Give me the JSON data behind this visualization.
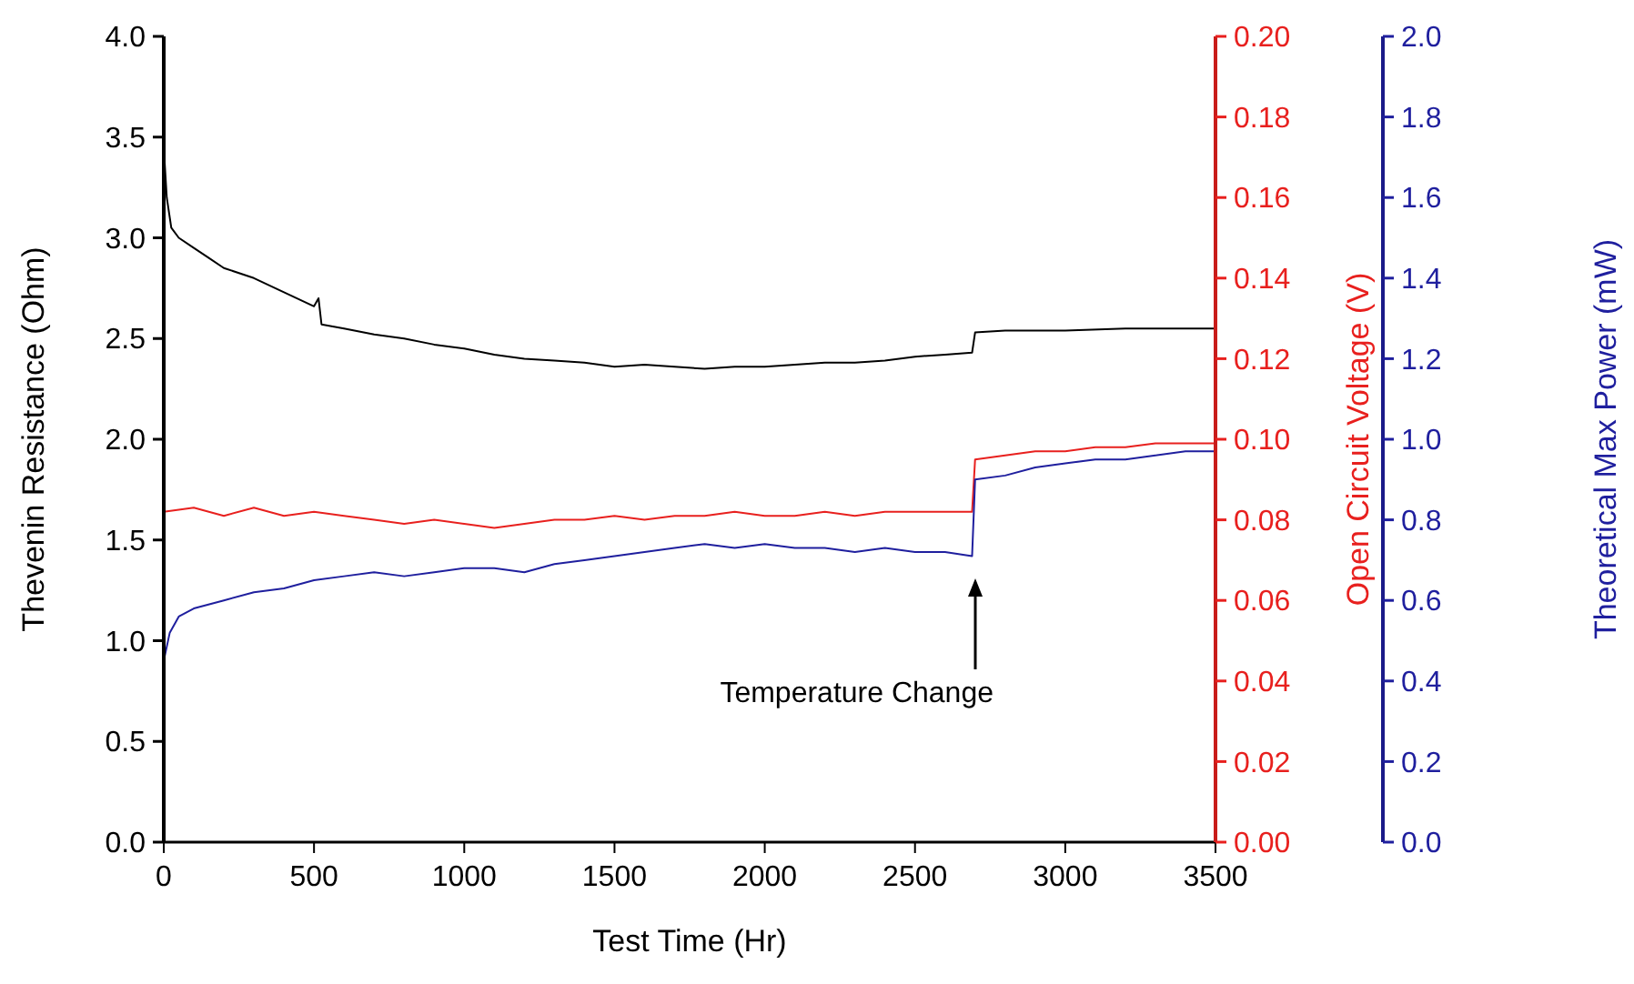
{
  "chart_data": {
    "type": "line",
    "xlabel": "Test Time (Hr)",
    "ylabel": "Thevenin Resistance (Ohm)",
    "y2label": "Open Circuit Voltage (V)",
    "y3label": "Theoretical Max Power (mW)",
    "xlim": [
      0,
      3500
    ],
    "xticks": [
      0,
      500,
      1000,
      1500,
      2000,
      2500,
      3000,
      3500
    ],
    "ylim": [
      0,
      4
    ],
    "yticks": [
      {
        "value": 0,
        "label": "0.0"
      },
      0.5,
      {
        "value": 1,
        "label": "1.0"
      },
      1.5,
      {
        "value": 2,
        "label": "2.0"
      },
      2.5,
      {
        "value": 3,
        "label": "3.0"
      },
      3.5,
      {
        "value": 4,
        "label": "4.0"
      }
    ],
    "y2lim": [
      0,
      0.2
    ],
    "y2ticks": [
      {
        "value": 0,
        "label": "0.00"
      },
      0.02,
      0.04,
      0.06,
      0.08,
      {
        "value": 0.1,
        "label": "0.10"
      },
      0.12,
      0.14,
      0.16,
      0.18,
      {
        "value": 0.2,
        "label": "0.20"
      }
    ],
    "y3lim": [
      0,
      2
    ],
    "y3ticks": [
      {
        "value": 0,
        "label": "0.0"
      },
      0.2,
      0.4,
      0.6,
      0.8,
      {
        "value": 1,
        "label": "1.0"
      },
      1.2,
      1.4,
      1.6,
      1.8,
      {
        "value": 2,
        "label": "2.0"
      }
    ],
    "annotations": [
      "Temperature Change"
    ],
    "series": [
      {
        "color": "#000000",
        "axis": "y",
        "x": [
          0,
          10,
          25,
          50,
          100,
          150,
          200,
          300,
          400,
          500,
          515,
          525,
          600,
          700,
          800,
          900,
          1000,
          1100,
          1200,
          1300,
          1400,
          1500,
          1600,
          1700,
          1800,
          1900,
          2000,
          2100,
          2200,
          2300,
          2400,
          2500,
          2600,
          2690,
          2700,
          2800,
          3000,
          3200,
          3500
        ],
        "values": [
          3.45,
          3.2,
          3.05,
          3.0,
          2.95,
          2.9,
          2.85,
          2.8,
          2.73,
          2.66,
          2.7,
          2.57,
          2.55,
          2.52,
          2.5,
          2.47,
          2.45,
          2.42,
          2.4,
          2.39,
          2.38,
          2.36,
          2.37,
          2.36,
          2.35,
          2.36,
          2.36,
          2.37,
          2.38,
          2.38,
          2.39,
          2.41,
          2.42,
          2.43,
          2.53,
          2.54,
          2.54,
          2.55,
          2.55
        ]
      },
      {
        "color": "#e8201e",
        "axis": "y2",
        "x": [
          0,
          100,
          200,
          300,
          400,
          500,
          600,
          700,
          800,
          900,
          1000,
          1100,
          1200,
          1300,
          1400,
          1500,
          1600,
          1700,
          1800,
          1900,
          2000,
          2100,
          2200,
          2300,
          2400,
          2500,
          2600,
          2690,
          2700,
          2800,
          2900,
          3000,
          3100,
          3200,
          3300,
          3400,
          3500
        ],
        "values": [
          0.082,
          0.083,
          0.081,
          0.083,
          0.081,
          0.082,
          0.081,
          0.08,
          0.079,
          0.08,
          0.079,
          0.078,
          0.079,
          0.08,
          0.08,
          0.081,
          0.08,
          0.081,
          0.081,
          0.082,
          0.081,
          0.081,
          0.082,
          0.081,
          0.082,
          0.082,
          0.082,
          0.082,
          0.095,
          0.096,
          0.097,
          0.097,
          0.098,
          0.098,
          0.099,
          0.099,
          0.099
        ]
      },
      {
        "color": "#1f1f9e",
        "axis": "y3",
        "x": [
          0,
          20,
          50,
          100,
          200,
          300,
          400,
          500,
          600,
          700,
          800,
          900,
          1000,
          1100,
          1200,
          1300,
          1400,
          1500,
          1600,
          1700,
          1800,
          1900,
          2000,
          2100,
          2200,
          2300,
          2400,
          2500,
          2600,
          2690,
          2700,
          2800,
          2900,
          3000,
          3100,
          3200,
          3300,
          3400,
          3500
        ],
        "values": [
          0.45,
          0.52,
          0.56,
          0.58,
          0.6,
          0.62,
          0.63,
          0.65,
          0.66,
          0.67,
          0.66,
          0.67,
          0.68,
          0.68,
          0.67,
          0.69,
          0.7,
          0.71,
          0.72,
          0.73,
          0.74,
          0.73,
          0.74,
          0.73,
          0.73,
          0.72,
          0.73,
          0.72,
          0.72,
          0.71,
          0.9,
          0.91,
          0.93,
          0.94,
          0.95,
          0.95,
          0.96,
          0.97,
          0.97
        ]
      }
    ]
  }
}
